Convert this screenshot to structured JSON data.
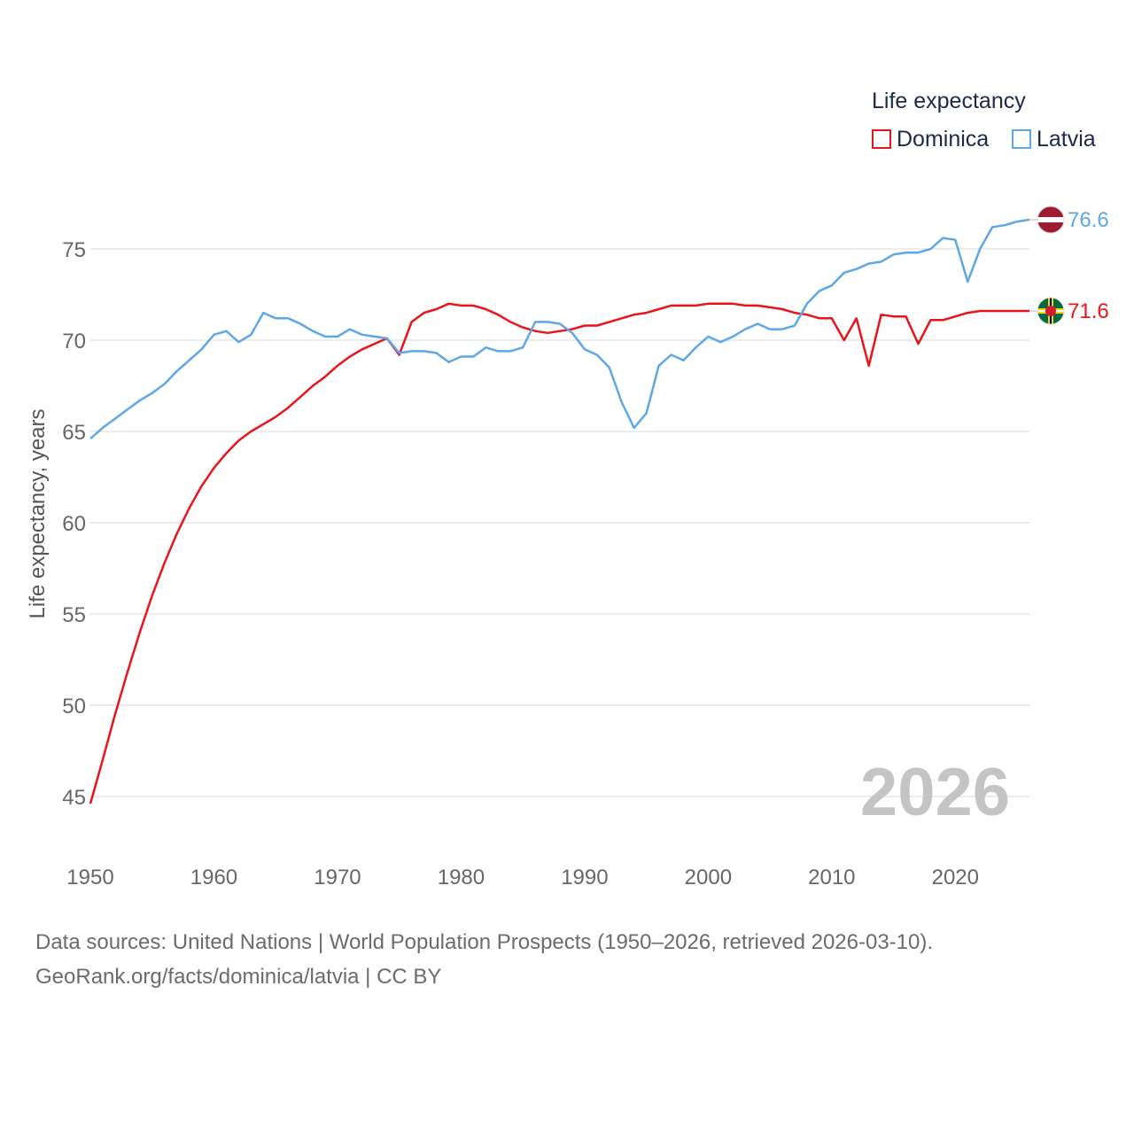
{
  "legend": {
    "title": "Life expectancy",
    "items": [
      {
        "label": "Dominica",
        "color": "#e8141a"
      },
      {
        "label": "Latvia",
        "color": "#5ea7e6"
      }
    ]
  },
  "footer": {
    "source_line": "Data sources: United Nations | World Population Prospects (1950–2026, retrieved 2026-03-10).",
    "link_line": "GeoRank.org/facts/dominica/latvia | CC BY"
  },
  "chart_data": {
    "type": "line",
    "title": "Life expectancy",
    "ylabel": "Life expectancy, years",
    "xlabel": "",
    "year_label": "2026",
    "xlim": [
      1950,
      2026
    ],
    "ylim": [
      43,
      78
    ],
    "xticks": [
      1950,
      1960,
      1970,
      1980,
      1990,
      2000,
      2010,
      2020
    ],
    "yticks": [
      45,
      50,
      55,
      60,
      65,
      70,
      75
    ],
    "grid": true,
    "legend_position": "top-right",
    "x": [
      1950,
      1951,
      1952,
      1953,
      1954,
      1955,
      1956,
      1957,
      1958,
      1959,
      1960,
      1961,
      1962,
      1963,
      1964,
      1965,
      1966,
      1967,
      1968,
      1969,
      1970,
      1971,
      1972,
      1973,
      1974,
      1975,
      1976,
      1977,
      1978,
      1979,
      1980,
      1981,
      1982,
      1983,
      1984,
      1985,
      1986,
      1987,
      1988,
      1989,
      1990,
      1991,
      1992,
      1993,
      1994,
      1995,
      1996,
      1997,
      1998,
      1999,
      2000,
      2001,
      2002,
      2003,
      2004,
      2005,
      2006,
      2007,
      2008,
      2009,
      2010,
      2011,
      2012,
      2013,
      2014,
      2015,
      2016,
      2017,
      2018,
      2019,
      2020,
      2021,
      2022,
      2023,
      2024,
      2025,
      2026
    ],
    "series": [
      {
        "name": "Dominica",
        "color": "#e8141a",
        "end_label": "71.6",
        "flag": "dominica-flag",
        "values": [
          44.6,
          47.0,
          49.5,
          51.8,
          54.0,
          56.0,
          57.8,
          59.4,
          60.8,
          62.0,
          63.0,
          63.8,
          64.5,
          65.0,
          65.4,
          65.8,
          66.3,
          66.9,
          67.5,
          68.0,
          68.6,
          69.1,
          69.5,
          69.8,
          70.1,
          69.2,
          71.0,
          71.5,
          71.7,
          72.0,
          71.9,
          71.9,
          71.7,
          71.4,
          71.0,
          70.7,
          70.5,
          70.4,
          70.5,
          70.6,
          70.8,
          70.8,
          71.0,
          71.2,
          71.4,
          71.5,
          71.7,
          71.9,
          71.9,
          71.9,
          72.0,
          72.0,
          72.0,
          71.9,
          71.9,
          71.8,
          71.7,
          71.5,
          71.4,
          71.2,
          71.2,
          70.0,
          71.2,
          68.6,
          71.4,
          71.3,
          71.3,
          69.8,
          71.1,
          71.1,
          71.3,
          71.5,
          71.6,
          71.6,
          71.6,
          71.6,
          71.6
        ]
      },
      {
        "name": "Latvia",
        "color": "#5ea7e6",
        "end_label": "76.6",
        "flag": "latvia-flag",
        "values": [
          64.6,
          65.2,
          65.7,
          66.2,
          66.7,
          67.1,
          67.6,
          68.3,
          68.9,
          69.5,
          70.3,
          70.5,
          69.9,
          70.3,
          71.5,
          71.2,
          71.2,
          70.9,
          70.5,
          70.2,
          70.2,
          70.6,
          70.3,
          70.2,
          70.1,
          69.3,
          69.4,
          69.4,
          69.3,
          68.8,
          69.1,
          69.1,
          69.6,
          69.4,
          69.4,
          69.6,
          71.0,
          71.0,
          70.9,
          70.4,
          69.5,
          69.2,
          68.5,
          66.6,
          65.2,
          66.0,
          68.6,
          69.2,
          68.9,
          69.6,
          70.2,
          69.9,
          70.2,
          70.6,
          70.9,
          70.6,
          70.6,
          70.8,
          72.0,
          72.7,
          73.0,
          73.7,
          73.9,
          74.2,
          74.3,
          74.7,
          74.8,
          74.8,
          75.0,
          75.6,
          75.5,
          73.2,
          75.0,
          76.2,
          76.3,
          76.5,
          76.6
        ]
      }
    ]
  }
}
